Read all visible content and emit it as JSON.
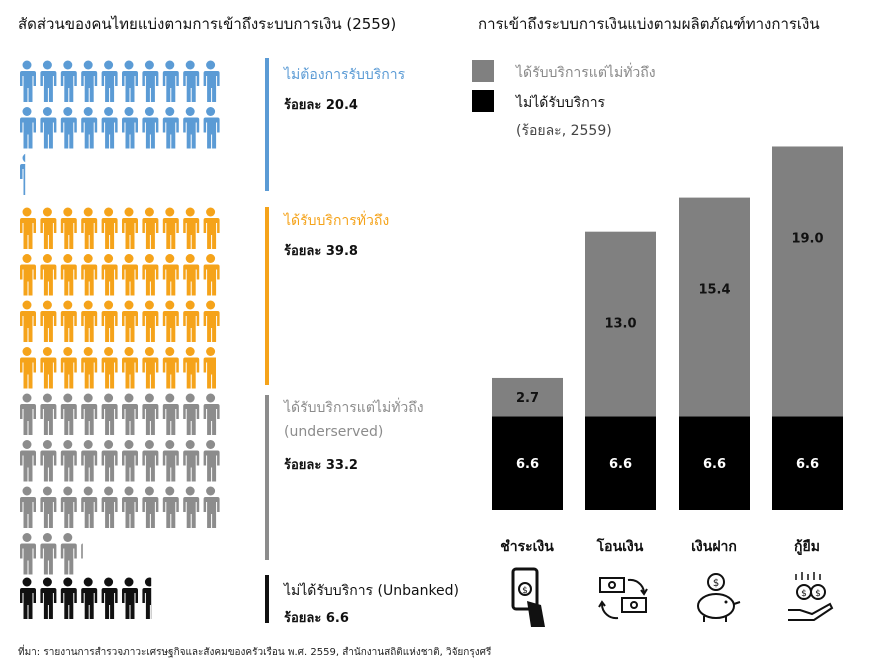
{
  "left_title": "สัดส่วนของคนไทยแบ่งตามการเข้าถึงระบบการเงิน (2559)",
  "right_title": "การเข้าถึงระบบการเงินแบ่งตามผลิตภัณฑ์ทางการเงิน",
  "groups": [
    {
      "label": "ไม่ต้องการรับบริการ",
      "label2": "",
      "pct": "ร้อยละ 20.4",
      "value": 20.4,
      "color": "#5b9bd5"
    },
    {
      "label": "ได้รับบริการทั่วถึง",
      "label2": "",
      "pct": "ร้อยละ 39.8",
      "value": 39.8,
      "color": "#f5a31a"
    },
    {
      "label": "ได้รับบริการแต่ไม่ทั่วถึง",
      "label2": "(underserved)",
      "pct": "ร้อยละ 33.2",
      "value": 33.2,
      "color": "#8c8c8c"
    },
    {
      "label": "ไม่ได้รับบริการ (Unbanked)",
      "label2": "",
      "pct": "ร้อยละ 6.6",
      "value": 6.6,
      "color": "#111111"
    }
  ],
  "legend": {
    "items": [
      {
        "label": "ได้รับบริการแต่ไม่ทั่วถึง",
        "color": "#808080"
      },
      {
        "label": "ไม่ได้รับบริการ",
        "color": "#000000"
      }
    ],
    "note": "(ร้อยละ, 2559)"
  },
  "icons": [
    "phone-payment-icon",
    "money-transfer-icon",
    "piggy-bank-icon",
    "loan-hand-icon"
  ],
  "source": "ที่มา: รายงานการสำรวจภาวะเศรษฐกิจและสังคมของครัวเรือน พ.ศ. 2559, สำนักงานสถิติแห่งชาติ, วิจัยกรุงศรี",
  "chart_data": {
    "type": "bar",
    "stacked": true,
    "categories": [
      "ชำระเงิน",
      "โอนเงิน",
      "เงินฝาก",
      "กู้ยืม"
    ],
    "series": [
      {
        "name": "ไม่ได้รับบริการ",
        "values": [
          6.6,
          6.6,
          6.6,
          6.6
        ],
        "color": "#000000"
      },
      {
        "name": "ได้รับบริการแต่ไม่ทั่วถึง",
        "values": [
          2.7,
          13.0,
          15.4,
          19.0
        ],
        "color": "#808080"
      }
    ],
    "ylim": [
      0,
      25.6
    ],
    "unit": "ร้อยละ, 2559"
  }
}
